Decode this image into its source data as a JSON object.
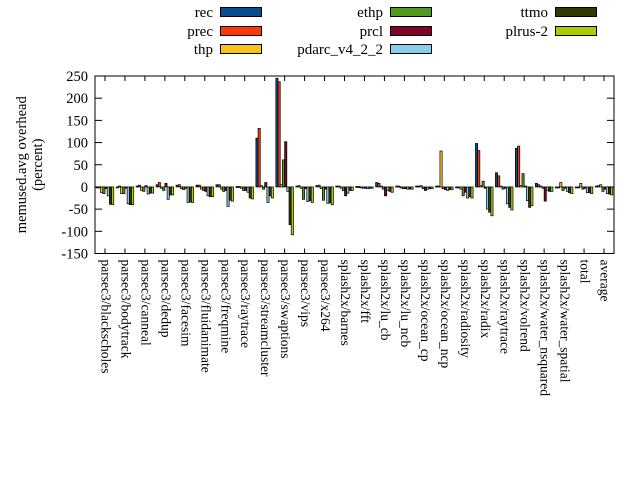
{
  "figure": {
    "background": "#ffffff"
  },
  "chart_data": {
    "type": "bar",
    "title": "",
    "xlabel": "",
    "ylabel_lines": [
      "memused.avg overhead",
      "(percent)"
    ],
    "ylim": [
      -150,
      250
    ],
    "ytick_step": 50,
    "yticks": [
      250,
      200,
      150,
      100,
      50,
      0,
      -50,
      -100,
      -150
    ],
    "grid": false,
    "legend_position": "top-center",
    "categories": [
      "parsec3/blackscholes",
      "parsec3/bodytrack",
      "parsec3/canneal",
      "parsec3/dedup",
      "parsec3/facesim",
      "parsec3/fluidanimate",
      "parsec3/freqmine",
      "parsec3/raytrace",
      "parsec3/streamcluster",
      "parsec3/swaptions",
      "parsec3/vips",
      "parsec3/x264",
      "splash2x/barnes",
      "splash2x/fft",
      "splash2x/lu_cb",
      "splash2x/lu_ncb",
      "splash2x/ocean_cp",
      "splash2x/ocean_ncp",
      "splash2x/radiosity",
      "splash2x/radix",
      "splash2x/raytrace",
      "splash2x/volrend",
      "splash2x/water_nsquared",
      "splash2x/water_spatial",
      "total",
      "average"
    ],
    "series": [
      {
        "name": "rec",
        "color": "#084e8c",
        "values": [
          -1,
          -1,
          2,
          5,
          4,
          4,
          5,
          1,
          110,
          245,
          2,
          3,
          2,
          1,
          10,
          2,
          2,
          2,
          -2,
          98,
          32,
          87,
          8,
          -2,
          -2,
          2
        ]
      },
      {
        "name": "prec",
        "color": "#fc3808",
        "values": [
          -2,
          2,
          4,
          10,
          5,
          4,
          5,
          1,
          132,
          237,
          3,
          4,
          2,
          1,
          8,
          2,
          2,
          2,
          -2,
          82,
          25,
          92,
          5,
          -2,
          -2,
          3
        ]
      },
      {
        "name": "thp",
        "color": "#fcc21c",
        "values": [
          -13,
          -15,
          -8,
          -3,
          -4,
          -5,
          -5,
          -3,
          3,
          5,
          -3,
          -4,
          -3,
          -2,
          2,
          -2,
          3,
          81,
          -5,
          3,
          2,
          3,
          2,
          10,
          8,
          5
        ]
      },
      {
        "name": "ethp",
        "color": "#4f9b1d",
        "values": [
          -15,
          -15,
          -10,
          -8,
          -6,
          -8,
          -10,
          -8,
          -5,
          61,
          -28,
          -30,
          -8,
          -3,
          -5,
          -4,
          -4,
          -4,
          -20,
          13,
          -5,
          30,
          -3,
          -8,
          -5,
          -10
        ]
      },
      {
        "name": "prcl",
        "color": "#7d0626",
        "values": [
          -4,
          -3,
          3,
          8,
          -3,
          -10,
          -8,
          -8,
          10,
          102,
          -4,
          -5,
          -20,
          -3,
          -20,
          -4,
          -8,
          -6,
          -12,
          -3,
          -3,
          2,
          -32,
          -3,
          -3,
          -5
        ]
      },
      {
        "name": "pdarc_v4_2_2",
        "color": "#87ceeb",
        "values": [
          -20,
          -38,
          -16,
          -28,
          -35,
          -20,
          -44,
          -12,
          -35,
          -10,
          -33,
          -37,
          -14,
          -4,
          -8,
          -5,
          -5,
          -8,
          -25,
          -50,
          -38,
          -31,
          -8,
          -10,
          -13,
          -15
        ]
      },
      {
        "name": "ttmo",
        "color": "#303b04",
        "values": [
          -39,
          -40,
          -14,
          -18,
          -34,
          -22,
          -30,
          -25,
          -20,
          -85,
          -31,
          -36,
          -8,
          -3,
          -10,
          -5,
          -4,
          -6,
          -22,
          -57,
          -46,
          -46,
          -10,
          -13,
          -13,
          -16
        ]
      },
      {
        "name": "plrus-2",
        "color": "#aacd00",
        "values": [
          -40,
          -40,
          -14,
          -18,
          -35,
          -22,
          -32,
          -27,
          -25,
          -108,
          -35,
          -40,
          -8,
          -3,
          -12,
          -5,
          -4,
          -6,
          -25,
          -65,
          -52,
          -42,
          -10,
          -15,
          -15,
          -18
        ]
      }
    ],
    "legend_columns": [
      [
        "rec",
        "prec",
        "thp"
      ],
      [
        "ethp",
        "prcl",
        "pdarc_v4_2_2"
      ],
      [
        "ttmo",
        "plrus-2"
      ]
    ]
  }
}
